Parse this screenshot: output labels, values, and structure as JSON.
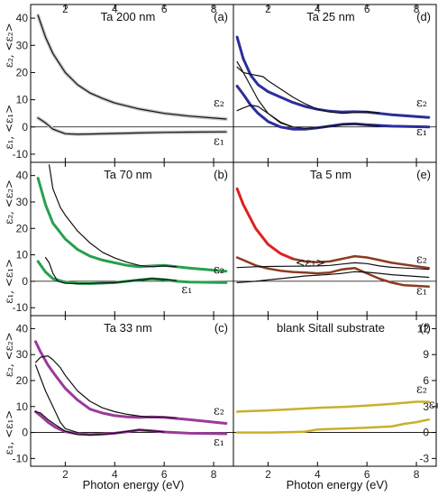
{
  "figure": {
    "xlabel": "Photon energy (eV)",
    "xticks": [
      "2",
      "4",
      "6",
      "8"
    ]
  },
  "chart_data": [
    {
      "id": "a",
      "type": "line",
      "title": "Ta 200 nm",
      "panel_label": "(a)",
      "xlim": [
        0.6,
        8.8
      ],
      "ylim": [
        -13,
        45
      ],
      "yticks": [
        "-10",
        "0",
        "10",
        "20",
        "30",
        "40"
      ],
      "ylabel_top": "ε₂, <ε₂>",
      "ylabel_bottom": "ε₁, <ε₁>",
      "annotations": [
        {
          "text": "ε₂",
          "x": 8.0,
          "y": 7.5
        },
        {
          "text": "ε₁",
          "x": 8.0,
          "y": -6.5
        }
      ],
      "series": [
        {
          "color": "#c8c8c8",
          "width": 4,
          "x": [
            0.9,
            1.2,
            1.5,
            2,
            2.5,
            3,
            3.5,
            4,
            5,
            6,
            7,
            8.5
          ],
          "y": [
            41,
            33,
            27,
            20,
            15.5,
            12.5,
            10.5,
            8.8,
            6.6,
            5,
            4,
            2.9
          ]
        },
        {
          "color": "#c8c8c8",
          "width": 4,
          "x": [
            0.9,
            1.2,
            1.5,
            2,
            2.5,
            3,
            4,
            5,
            6,
            7,
            8.5
          ],
          "y": [
            3.3,
            1.5,
            -0.8,
            -2.5,
            -2.7,
            -2.6,
            -2.4,
            -2.2,
            -2,
            -1.9,
            -1.8
          ]
        },
        {
          "color": "#111111",
          "width": 1.2,
          "x": [
            0.9,
            1.2,
            1.5,
            2,
            2.5,
            3,
            3.5,
            4,
            5,
            6,
            7,
            8.5
          ],
          "y": [
            41,
            33,
            27,
            20,
            15.5,
            12.5,
            10.5,
            8.8,
            6.6,
            5,
            4,
            2.9
          ]
        },
        {
          "color": "#111111",
          "width": 1.2,
          "x": [
            0.9,
            1.2,
            1.5,
            2,
            2.5,
            3,
            4,
            5,
            6,
            7,
            8.5
          ],
          "y": [
            3.3,
            1.5,
            -0.8,
            -2.5,
            -2.7,
            -2.6,
            -2.4,
            -2.2,
            -2,
            -1.9,
            -1.8
          ]
        }
      ]
    },
    {
      "id": "d",
      "type": "line",
      "title": "Ta 25 nm",
      "panel_label": "(d)",
      "xlim": [
        0.6,
        8.8
      ],
      "ylim": [
        -13,
        45
      ],
      "yticks": [],
      "ylabel_top": "",
      "ylabel_bottom": "",
      "annotations": [
        {
          "text": "ε₂",
          "x": 8.0,
          "y": 7.5
        },
        {
          "text": "ε₁",
          "x": 8.0,
          "y": -3
        }
      ],
      "series": [
        {
          "color": "#2b2e9a",
          "width": 3,
          "x": [
            0.75,
            1,
            1.3,
            1.6,
            2,
            2.5,
            3,
            3.5,
            4,
            4.5,
            5,
            5.5,
            6,
            7,
            8.5
          ],
          "y": [
            33,
            25,
            19,
            15.5,
            13,
            11,
            9,
            7.5,
            6.5,
            5.8,
            5.5,
            5.6,
            5.5,
            4.5,
            3.5
          ]
        },
        {
          "color": "#2b2e9a",
          "width": 3,
          "x": [
            0.75,
            1,
            1.3,
            1.6,
            2,
            2.5,
            3,
            3.5,
            4,
            4.5,
            5,
            5.5,
            6,
            7,
            8.5
          ],
          "y": [
            15,
            12,
            8,
            5,
            2,
            0,
            -0.8,
            -0.8,
            -0.3,
            0.3,
            1,
            1.2,
            0.8,
            0.3,
            0
          ]
        },
        {
          "color": "#111111",
          "width": 1.2,
          "x": [
            0.75,
            1,
            1.5,
            1.8,
            2,
            2.5,
            3,
            3.5,
            4,
            4.5,
            5,
            5.5,
            6,
            6.5
          ],
          "y": [
            22,
            20,
            19,
            18.5,
            17,
            14,
            11,
            8.5,
            6.5,
            5.5,
            5,
            5.3,
            5.6,
            5.2
          ]
        },
        {
          "color": "#111111",
          "width": 1.2,
          "x": [
            0.75,
            1,
            1.3,
            1.6,
            2,
            2.5,
            3
          ],
          "y": [
            24,
            20,
            15,
            10,
            5,
            1.5,
            0
          ]
        },
        {
          "color": "#111111",
          "width": 1.2,
          "x": [
            0.75,
            1,
            1.3,
            1.6,
            2,
            2.5,
            3,
            3.5,
            4,
            4.5,
            5,
            5.5,
            6,
            6.5
          ],
          "y": [
            6,
            7,
            8,
            7.5,
            5,
            1.8,
            0,
            -0.5,
            -0.3,
            0.3,
            0.8,
            1,
            0.7,
            0.5
          ]
        }
      ]
    },
    {
      "id": "b",
      "type": "line",
      "title": "Ta 70 nm",
      "panel_label": "(b)",
      "xlim": [
        0.6,
        8.8
      ],
      "ylim": [
        -13,
        45
      ],
      "yticks": [
        "-10",
        "0",
        "10",
        "20",
        "30",
        "40"
      ],
      "ylabel_top": "ε₂, <ε₂>",
      "ylabel_bottom": "ε₁, <ε₁>",
      "annotations": [
        {
          "text": "ε₂",
          "x": 8.0,
          "y": 3
        },
        {
          "text": "ε₁",
          "x": 6.7,
          "y": -4.5
        }
      ],
      "series": [
        {
          "color": "#27a04e",
          "width": 3,
          "x": [
            0.9,
            1.2,
            1.5,
            2,
            2.5,
            3,
            3.5,
            4,
            4.5,
            5,
            5.5,
            6,
            7,
            8.5
          ],
          "y": [
            39,
            29,
            22,
            16,
            12,
            9.5,
            8,
            7,
            6,
            5.5,
            5.8,
            6,
            5,
            3.8
          ]
        },
        {
          "color": "#27a04e",
          "width": 3,
          "x": [
            0.9,
            1.2,
            1.5,
            2,
            2.5,
            3,
            4,
            4.5,
            5,
            5.5,
            6,
            6.5,
            7,
            8.5
          ],
          "y": [
            7.5,
            3.5,
            1,
            -0.3,
            -0.8,
            -0.9,
            -0.5,
            0,
            0.5,
            1,
            0.6,
            0,
            -0.3,
            -0.5
          ]
        },
        {
          "color": "#111111",
          "width": 1.2,
          "x": [
            1.35,
            1.5,
            1.8,
            2,
            2.5,
            3,
            3.5,
            4,
            4.5,
            5,
            5.5,
            6,
            6.5
          ],
          "y": [
            44,
            35,
            28,
            25,
            19,
            14.5,
            11,
            8.8,
            7.2,
            6,
            5.5,
            5.8,
            5.5
          ]
        },
        {
          "color": "#111111",
          "width": 1.2,
          "x": [
            1.2,
            1.35,
            1.5,
            1.7,
            2,
            2.5,
            3,
            4,
            5,
            5.5,
            6,
            6.5
          ],
          "y": [
            9,
            7,
            3,
            0,
            -0.8,
            -0.9,
            -0.8,
            -0.5,
            0.5,
            1,
            0.8,
            0.3
          ]
        }
      ]
    },
    {
      "id": "e",
      "type": "line",
      "title": "Ta 5 nm",
      "panel_label": "(e)",
      "xlim": [
        0.6,
        8.8
      ],
      "ylim": [
        -13,
        45
      ],
      "yticks": [],
      "ylabel_top": "",
      "ylabel_bottom": "",
      "annotations": [
        {
          "text": "ε₂",
          "x": 8.0,
          "y": 7
        },
        {
          "text": "<ε₁>",
          "x": 3.1,
          "y": 5.6
        },
        {
          "text": "ε₁",
          "x": 8.0,
          "y": -5
        }
      ],
      "series": [
        {
          "color": "#e02020",
          "width": 3,
          "x": [
            0.75,
            1,
            1.5,
            2,
            2.5,
            3
          ],
          "y": [
            35,
            29,
            20,
            14,
            10.5,
            8.5
          ]
        },
        {
          "color": "#8b3b1f",
          "width": 2.5,
          "x": [
            3,
            3.5,
            4,
            4.5,
            5,
            5.5,
            6,
            6.5,
            7,
            8.5
          ],
          "y": [
            8.5,
            7.5,
            7.2,
            7.5,
            8.5,
            9.5,
            9,
            8,
            7,
            5
          ]
        },
        {
          "color": "#8b3b1f",
          "width": 2.5,
          "x": [
            0.75,
            1,
            1.5,
            2,
            2.5,
            3,
            3.5,
            4,
            4.5,
            5,
            5.5,
            6,
            6.5,
            7,
            7.5,
            8.5
          ],
          "y": [
            9,
            8,
            6,
            4.8,
            4,
            3.5,
            3.3,
            3,
            3.3,
            4.5,
            5,
            3,
            1,
            -0.5,
            -1.5,
            -2
          ]
        },
        {
          "color": "#111111",
          "width": 1.2,
          "x": [
            0.75,
            1.5,
            2,
            3,
            4,
            4.5,
            5,
            5.5,
            6,
            6.5,
            7,
            7.5,
            8,
            8.5
          ],
          "y": [
            5.2,
            5.5,
            5.6,
            5.7,
            5.8,
            6,
            6.5,
            7,
            6.7,
            5.8,
            5.3,
            5,
            4.8,
            4.5
          ]
        },
        {
          "color": "#111111",
          "width": 1.2,
          "x": [
            0.75,
            1.5,
            2,
            2.5,
            3,
            3.5,
            4,
            4.5,
            5,
            5.5,
            6,
            6.5,
            7,
            8.5
          ],
          "y": [
            -0.5,
            0,
            0.5,
            1,
            1.5,
            2,
            2.3,
            2.6,
            3,
            3.6,
            3.4,
            3,
            2.5,
            1.5
          ]
        }
      ]
    },
    {
      "id": "c",
      "type": "line",
      "title": "Ta 33 nm",
      "panel_label": "(c)",
      "xlim": [
        0.6,
        8.8
      ],
      "ylim": [
        -13,
        45
      ],
      "yticks": [
        "-10",
        "0",
        "10",
        "20",
        "30",
        "40"
      ],
      "ylabel_top": "ε₂, <ε₂>",
      "ylabel_bottom": "ε₁, <ε₁>",
      "annotations": [
        {
          "text": "ε₂",
          "x": 8.0,
          "y": 7
        },
        {
          "text": "ε₁",
          "x": 8.0,
          "y": -5
        }
      ],
      "series": [
        {
          "color": "#9b3a9b",
          "width": 3,
          "x": [
            0.8,
            1,
            1.3,
            1.6,
            2,
            2.5,
            3,
            3.5,
            4,
            4.5,
            5,
            5.5,
            6,
            7,
            8.5
          ],
          "y": [
            35,
            31,
            26,
            22,
            17,
            12.5,
            9,
            7.5,
            6.5,
            6,
            5.8,
            6,
            5.8,
            5,
            3.5
          ]
        },
        {
          "color": "#9b3a9b",
          "width": 3,
          "x": [
            0.8,
            1,
            1.3,
            1.6,
            2,
            2.5,
            3,
            3.5,
            4,
            4.5,
            5,
            5.5,
            6,
            7,
            8.5
          ],
          "y": [
            8,
            6.5,
            4,
            2,
            0.3,
            -0.5,
            -0.8,
            -0.6,
            -0.3,
            0.3,
            1,
            0.6,
            0.2,
            -0.3,
            -0.5
          ]
        },
        {
          "color": "#111111",
          "width": 1.2,
          "x": [
            0.8,
            1,
            1.3,
            1.5,
            1.8,
            2,
            2.5,
            3,
            3.5,
            4,
            4.5,
            5,
            5.5,
            6,
            6.5
          ],
          "y": [
            27,
            29,
            29.5,
            28,
            25,
            22,
            16,
            12,
            9.5,
            8,
            7,
            6.3,
            5.8,
            6,
            5.6
          ]
        },
        {
          "color": "#111111",
          "width": 1.2,
          "x": [
            0.8,
            1,
            1.2,
            1.5,
            1.8,
            2,
            2.5
          ],
          "y": [
            26,
            21,
            16,
            10,
            4,
            1.5,
            0
          ]
        },
        {
          "color": "#111111",
          "width": 1.2,
          "x": [
            0.8,
            1,
            1.3,
            1.6,
            2,
            2.5,
            3,
            3.5,
            4,
            4.5,
            5,
            5.5,
            6
          ],
          "y": [
            8,
            7.5,
            5,
            3,
            0.5,
            -0.8,
            -1,
            -0.8,
            -0.3,
            0.4,
            1,
            0.6,
            0.2
          ]
        }
      ]
    },
    {
      "id": "f",
      "type": "line",
      "title": "blank Sitall substrate",
      "panel_label": "(f)",
      "xlim": [
        0.6,
        8.8
      ],
      "ylim": [
        -3.9,
        13.5
      ],
      "yticks_right": [
        "-3",
        "0",
        "3",
        "6",
        "9",
        "12"
      ],
      "ylabel_top": "",
      "ylabel_bottom": "",
      "annotations": [
        {
          "text": "ε₂",
          "x": 8.0,
          "y": 4.6
        },
        {
          "text": "ε₁",
          "x": 8.5,
          "y": 2.8
        }
      ],
      "series": [
        {
          "color": "#c9b02a",
          "width": 2.5,
          "x": [
            0.75,
            1,
            2,
            3,
            4,
            5,
            6,
            7,
            8,
            8.5
          ],
          "y": [
            2.4,
            2.45,
            2.55,
            2.7,
            2.85,
            2.95,
            3.1,
            3.3,
            3.55,
            3.55
          ]
        },
        {
          "color": "#c9b02a",
          "width": 2.5,
          "x": [
            0.75,
            1,
            2,
            3,
            3.5,
            4,
            5,
            6,
            7,
            7.5,
            8,
            8.5
          ],
          "y": [
            0,
            0,
            0,
            0.05,
            0.1,
            0.35,
            0.45,
            0.55,
            0.7,
            1,
            1.2,
            1.5
          ]
        }
      ]
    }
  ]
}
